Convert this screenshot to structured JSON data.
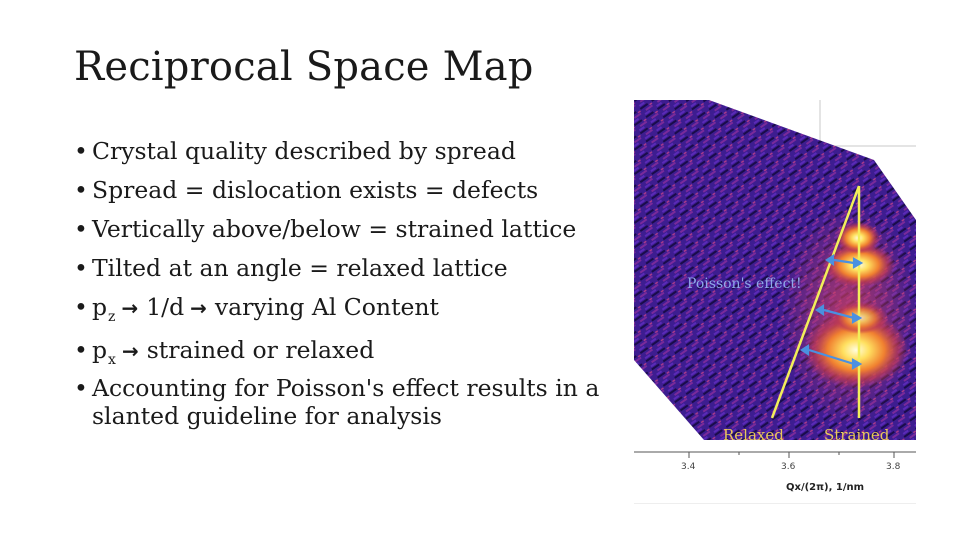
{
  "slide": {
    "title": "Reciprocal Space Map",
    "bullets": [
      {
        "text": "Crystal quality described by spread"
      },
      {
        "text": "Spread = dislocation exists = defects"
      },
      {
        "text": "Vertically above/below = strained lattice"
      },
      {
        "text": "Tilted at an angle = relaxed lattice"
      },
      {
        "base": "p",
        "sub": "z",
        "arrow": "→",
        "mid": "1/d",
        "arrow2": "→",
        "rest": "varying Al Content"
      },
      {
        "base": "p",
        "sub": "x",
        "arrow": "→",
        "rest": "strained or relaxed"
      },
      {
        "text": "Accounting for Poisson's effect results in a slanted guideline for analysis"
      }
    ]
  },
  "figure": {
    "annotation_poisson": "Poisson's effect!",
    "label_relaxed": "Relaxed",
    "label_strained": "Strained",
    "x_ticks": [
      "3.4",
      "3.6",
      "3.8"
    ],
    "x_axis_label": "Qx/(2π), 1/nm",
    "colors": {
      "background_map": "#3a1a8c",
      "guide_lines": "#f2ee5a",
      "arrows": "#4a90e0",
      "peak": "#fff8b0"
    }
  }
}
